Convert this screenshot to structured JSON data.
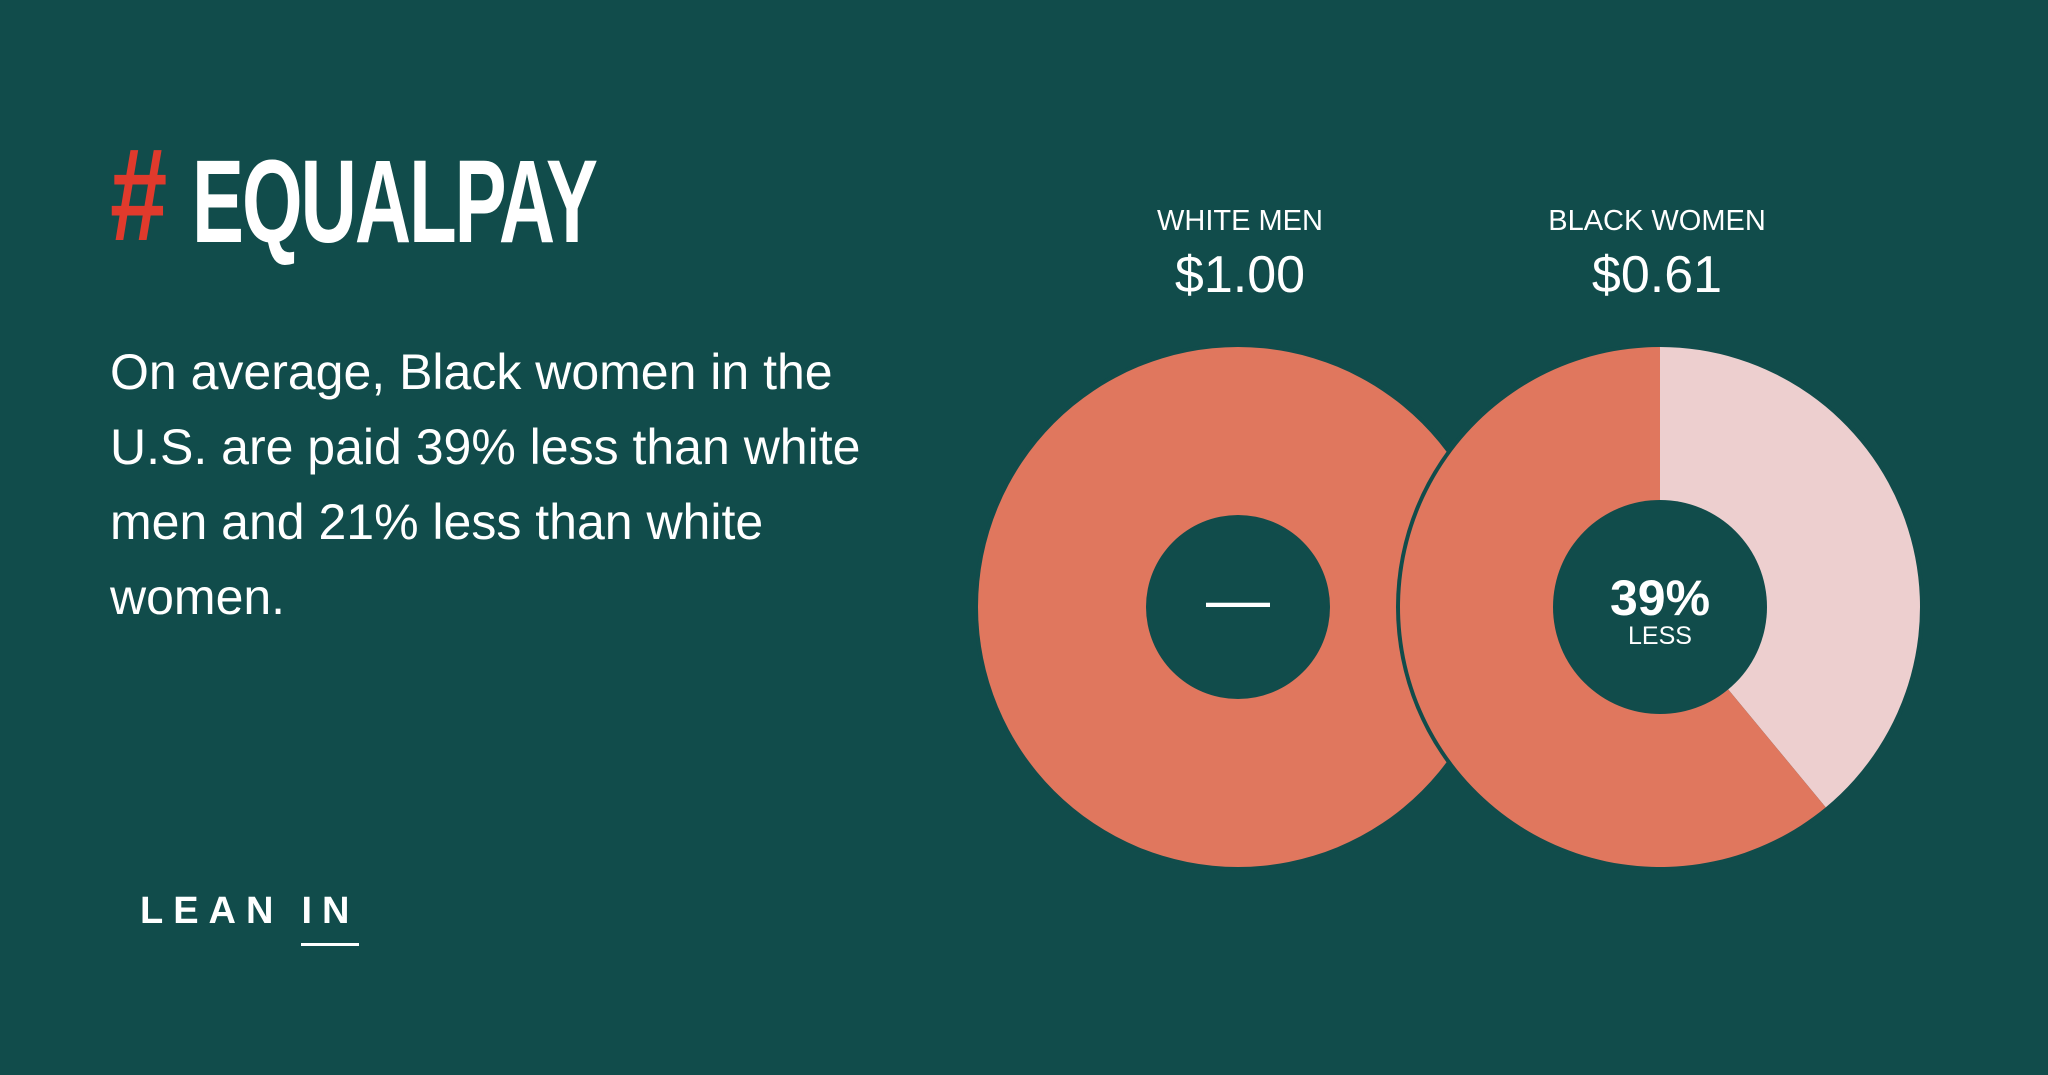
{
  "colors": {
    "background": "#114c4b",
    "accent_red": "#e03a2c",
    "pie_main": "#e0775e",
    "pie_gap": "#edcfcf",
    "text": "#ffffff"
  },
  "logo": {
    "hash": "#",
    "word": "EQUALPAY"
  },
  "body_text": "On average, Black women in the U.S. are paid 39% less than white men and 21% less than white women.",
  "brand": {
    "lean": "LEAN",
    "in": "IN"
  },
  "chart_data": {
    "type": "pie",
    "charts": [
      {
        "category": "WHITE MEN",
        "value_label": "$1.00",
        "value": 1.0,
        "center_label": "—",
        "center_sublabel": ""
      },
      {
        "category": "BLACK WOMEN",
        "value_label": "$0.61",
        "value": 0.61,
        "center_label": "39%",
        "center_sublabel": "LESS"
      }
    ]
  }
}
